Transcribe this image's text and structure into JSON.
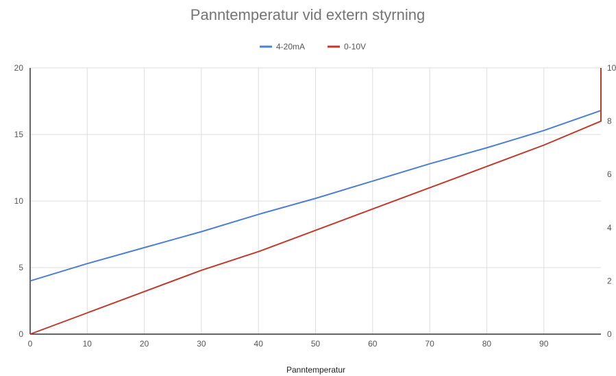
{
  "chart_data": {
    "type": "line",
    "title": "Panntemperatur vid extern styrning",
    "xlabel": "Panntemperatur",
    "ylabel": "",
    "ylabel_right": "",
    "x_ticks": [
      0,
      10,
      20,
      30,
      40,
      50,
      60,
      70,
      80,
      90
    ],
    "xlim": [
      0,
      100
    ],
    "y_left_ticks": [
      0,
      5,
      10,
      15,
      20
    ],
    "ylim_left": [
      0,
      20
    ],
    "y_right_ticks": [
      0,
      2,
      4,
      6,
      8,
      10
    ],
    "ylim_right": [
      0,
      10
    ],
    "grid": true,
    "legend_position": "top",
    "series": [
      {
        "name": "4-20mA",
        "axis": "left",
        "color": "#4a7fd4",
        "x": [
          0,
          10,
          20,
          30,
          40,
          50,
          60,
          70,
          80,
          90,
          100
        ],
        "y": [
          4.0,
          5.3,
          6.5,
          7.7,
          9.0,
          10.2,
          11.5,
          12.8,
          14.0,
          15.3,
          16.8
        ]
      },
      {
        "name": "0-10V",
        "axis": "right",
        "color": "#c0392b",
        "x": [
          0,
          10,
          20,
          30,
          40,
          50,
          60,
          70,
          80,
          90,
          100,
          100
        ],
        "y": [
          0.0,
          0.8,
          1.6,
          2.4,
          3.1,
          3.9,
          4.7,
          5.5,
          6.3,
          7.1,
          8.0,
          10.0
        ]
      }
    ]
  }
}
